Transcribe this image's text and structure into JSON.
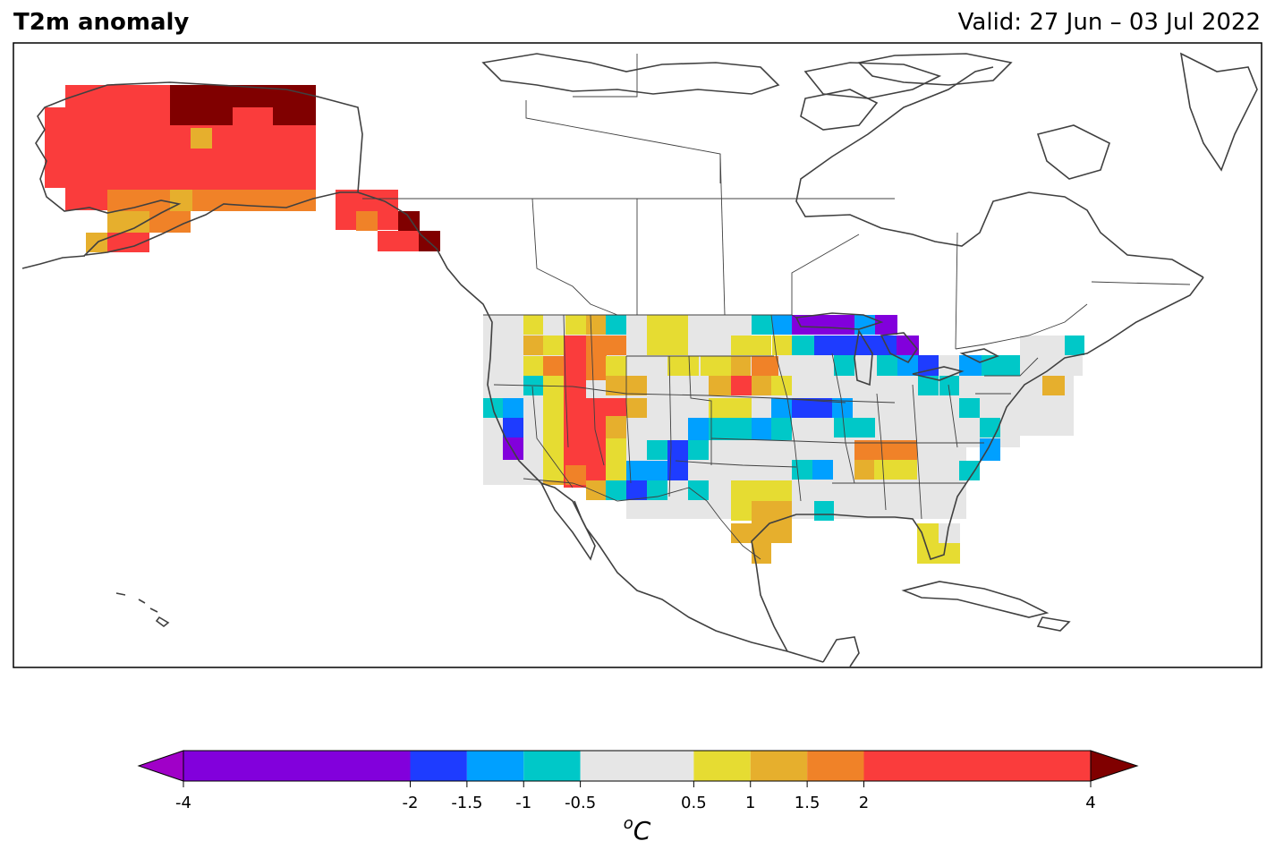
{
  "header": {
    "title": "T2m anomaly",
    "valid": "Valid: 27 Jun – 03 Jul 2022"
  },
  "colorbar": {
    "unit": "oC",
    "ticks": [
      "-4",
      "-2",
      "-1.5",
      "-1",
      "-0.5",
      "0.5",
      "1",
      "1.5",
      "2",
      "4"
    ],
    "bins": [
      {
        "from": -4,
        "to": -2,
        "color": "#8200dc"
      },
      {
        "from": -2,
        "to": -1.5,
        "color": "#1e3cff"
      },
      {
        "from": -1.5,
        "to": -1,
        "color": "#00a0ff"
      },
      {
        "from": -1,
        "to": -0.5,
        "color": "#00c8c8"
      },
      {
        "from": -0.5,
        "to": 0.5,
        "color": "#e6e6e6"
      },
      {
        "from": 0.5,
        "to": 1,
        "color": "#e6dc32"
      },
      {
        "from": 1,
        "to": 1.5,
        "color": "#e6af2d"
      },
      {
        "from": 1.5,
        "to": 2,
        "color": "#f08228"
      },
      {
        "from": 2,
        "to": 4,
        "color": "#fa3c3c"
      }
    ],
    "under_color": "#a000c8",
    "over_color": "#800000"
  },
  "colors": {
    "coastline": "#404040",
    "border": "#404040"
  }
}
